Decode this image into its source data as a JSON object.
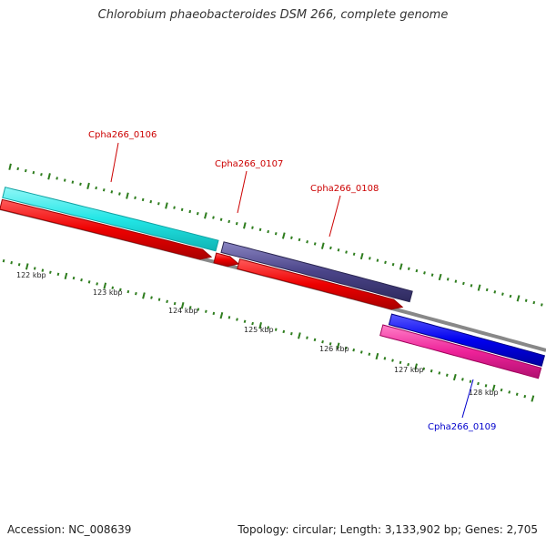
{
  "title": "Chlorobium phaeobacteroides DSM 266, complete genome",
  "footer": {
    "accession": "Accession: NC_008639",
    "summary": "Topology: circular; Length: 3,133,902 bp; Genes: 2,705"
  },
  "gene_labels": [
    {
      "id": "Cpha266_0106",
      "text": "Cpha266_0106",
      "color": "#cc0000"
    },
    {
      "id": "Cpha266_0107",
      "text": "Cpha266_0107",
      "color": "#cc0000"
    },
    {
      "id": "Cpha266_0108",
      "text": "Cpha266_0108",
      "color": "#cc0000"
    },
    {
      "id": "Cpha266_0109",
      "text": "Cpha266_0109",
      "color": "#0000cc"
    }
  ],
  "kbp_labels": [
    "122 kbp",
    "123 kbp",
    "124 kbp",
    "125 kbp",
    "126 kbp",
    "127 kbp",
    "128 kbp"
  ],
  "colors": {
    "backbone": "#888888",
    "tick": "#2e7d1e",
    "cds_cyan": "#22e6e6",
    "cds_red": "#ee0000",
    "cds_purple": "#4a4488",
    "cds_blue": "#0000ee",
    "cds_pink": "#ee2299"
  }
}
